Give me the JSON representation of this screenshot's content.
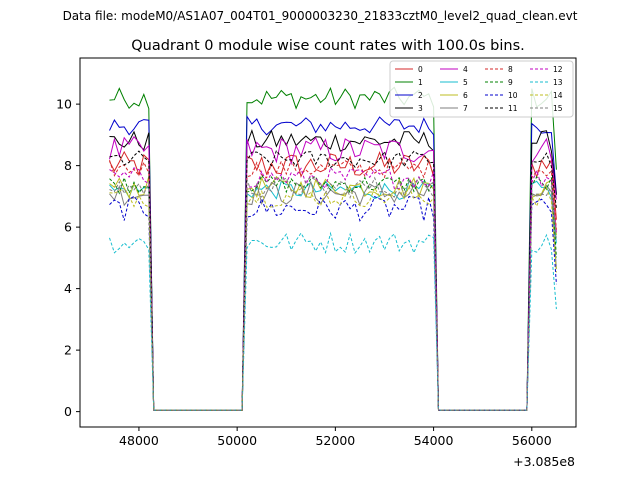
{
  "chart_data": {
    "type": "line",
    "suptitle": "Data file: modeM0/AS1A07_004T01_9000003230_21833cztM0_level2_quad_clean.evt",
    "title": "Quadrant 0 module wise count rates with 100.0s bins.",
    "xlabel": "",
    "ylabel": "",
    "x_offset_label": "+3.085e8",
    "xlim": [
      46800,
      56900
    ],
    "ylim": [
      -0.5,
      11.5
    ],
    "xticks": [
      48000,
      50000,
      52000,
      54000,
      56000
    ],
    "xtick_labels": [
      "48000",
      "50000",
      "52000",
      "54000",
      "56000"
    ],
    "yticks": [
      0,
      2,
      4,
      6,
      8,
      10
    ],
    "ytick_labels": [
      "0",
      "2",
      "4",
      "6",
      "8",
      "10"
    ],
    "legend_position": "upper-right",
    "segments": [
      {
        "start": 47400,
        "end": 48200,
        "step": 100
      },
      {
        "start": 50200,
        "end": 54000,
        "step": 100
      },
      {
        "start": 56000,
        "end": 56500,
        "step": 100
      }
    ],
    "gap_value": 0.05,
    "series": [
      {
        "name": "0",
        "color": "#d62728",
        "dash": false,
        "level": 8.0,
        "varies": 0.45
      },
      {
        "name": "1",
        "color": "#008000",
        "dash": false,
        "level": 10.2,
        "varies": 0.35
      },
      {
        "name": "2",
        "color": "#0000cc",
        "dash": false,
        "level": 9.3,
        "varies": 0.3
      },
      {
        "name": "3",
        "color": "#000000",
        "dash": false,
        "level": 8.8,
        "varies": 0.35
      },
      {
        "name": "4",
        "color": "#c000c0",
        "dash": false,
        "level": 8.5,
        "varies": 0.45
      },
      {
        "name": "5",
        "color": "#17becf",
        "dash": false,
        "level": 7.2,
        "varies": 0.3
      },
      {
        "name": "6",
        "color": "#bcbd22",
        "dash": false,
        "level": 7.3,
        "varies": 0.35
      },
      {
        "name": "7",
        "color": "#7f7f7f",
        "dash": false,
        "level": 7.1,
        "varies": 0.4
      },
      {
        "name": "8",
        "color": "#d62728",
        "dash": true,
        "level": 7.9,
        "varies": 0.3
      },
      {
        "name": "9",
        "color": "#008000",
        "dash": true,
        "level": 7.4,
        "varies": 0.3
      },
      {
        "name": "10",
        "color": "#0000cc",
        "dash": true,
        "level": 6.6,
        "varies": 0.4
      },
      {
        "name": "11",
        "color": "#000000",
        "dash": true,
        "level": 8.2,
        "varies": 0.3
      },
      {
        "name": "12",
        "color": "#c000c0",
        "dash": true,
        "level": 7.6,
        "varies": 0.35
      },
      {
        "name": "13",
        "color": "#17becf",
        "dash": true,
        "level": 5.5,
        "varies": 0.35
      },
      {
        "name": "14",
        "color": "#bcbd22",
        "dash": true,
        "level": 7.0,
        "varies": 0.35
      },
      {
        "name": "15",
        "color": "#7f7f7f",
        "dash": true,
        "level": 7.3,
        "varies": 0.35
      }
    ]
  }
}
